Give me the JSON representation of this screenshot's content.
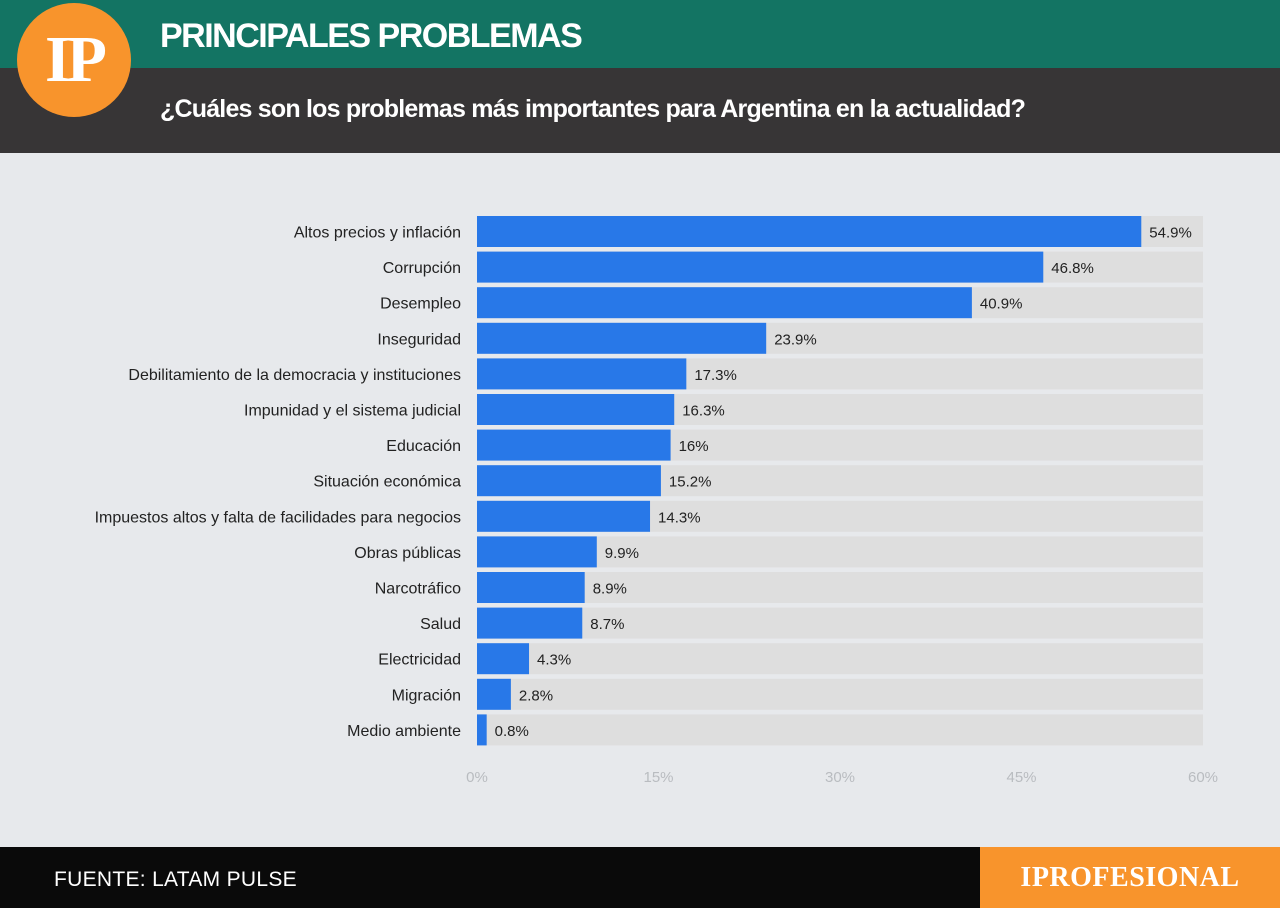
{
  "header": {
    "logo_text": "IP",
    "title": "PRINCIPALES PROBLEMAS",
    "subtitle": "¿Cuáles son los problemas más importantes para Argentina en la actualidad?"
  },
  "footer": {
    "source": "FUENTE: LATAM PULSE",
    "brand": "IPROFESIONAL"
  },
  "colors": {
    "header_green": "#137463",
    "header_dark": "#373536",
    "brand_orange": "#f8942c",
    "bar_blue": "#2878e8",
    "track_gray": "#dedede"
  },
  "chart_data": {
    "type": "bar",
    "orientation": "horizontal",
    "categories": [
      "Altos precios y inflación",
      "Corrupción",
      "Desempleo",
      "Inseguridad",
      "Debilitamiento de la democracia y instituciones",
      "Impunidad y el sistema judicial",
      "Educación",
      "Situación económica",
      "Impuestos altos y falta de facilidades para negocios",
      "Obras públicas",
      "Narcotráfico",
      "Salud",
      "Electricidad",
      "Migración",
      "Medio ambiente"
    ],
    "values": [
      54.9,
      46.8,
      40.9,
      23.9,
      17.3,
      16.3,
      16,
      15.2,
      14.3,
      9.9,
      8.9,
      8.7,
      4.3,
      2.8,
      0.8
    ],
    "value_labels": [
      "54.9%",
      "46.8%",
      "40.9%",
      "23.9%",
      "17.3%",
      "16.3%",
      "16%",
      "15.2%",
      "14.3%",
      "9.9%",
      "8.9%",
      "8.7%",
      "4.3%",
      "2.8%",
      "0.8%"
    ],
    "xlim": [
      0,
      60
    ],
    "x_ticks": [
      0,
      15,
      30,
      45,
      60
    ],
    "x_tick_labels": [
      "0%",
      "15%",
      "30%",
      "45%",
      "60%"
    ],
    "grid": false,
    "legend": "none"
  }
}
